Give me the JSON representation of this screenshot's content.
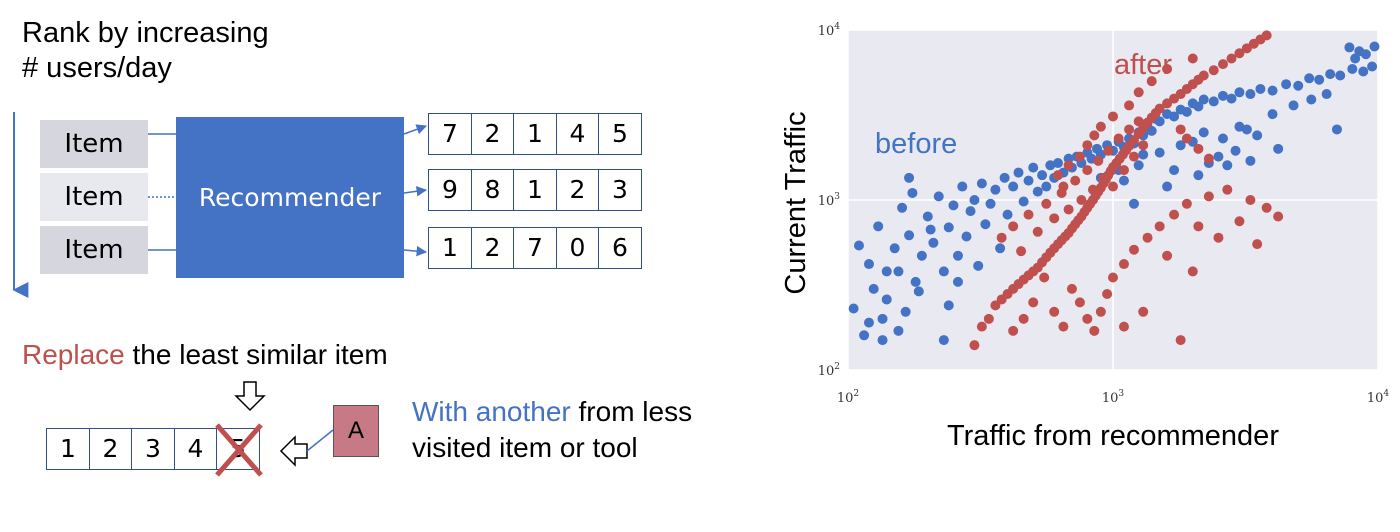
{
  "diagram": {
    "heading_line1": "Rank by increasing",
    "heading_line2": "# users/day",
    "items": [
      "Item",
      "Item",
      "Item"
    ],
    "recommender_label": "Recommender",
    "rows": [
      [
        "7",
        "2",
        "1",
        "4",
        "5"
      ],
      [
        "9",
        "8",
        "1",
        "2",
        "3"
      ],
      [
        "1",
        "2",
        "7",
        "0",
        "6"
      ]
    ],
    "replace_word": "Replace",
    "replace_rest": " the least similar item",
    "bottom_row": [
      "1",
      "2",
      "3",
      "4",
      "5"
    ],
    "a_label": "A",
    "with_highlight": "With another",
    "with_rest": " from less visited item or tool",
    "colors": {
      "accent_blue": "#4472c4",
      "accent_red": "#c0504d"
    }
  },
  "chart_data": {
    "type": "scatter",
    "xlabel": "Traffic from recommender",
    "ylabel": "Current Traffic",
    "x_scale": "log",
    "y_scale": "log",
    "xlim": [
      100,
      10000
    ],
    "ylim": [
      100,
      10000
    ],
    "x_ticks": [
      {
        "value": 100,
        "base": "10",
        "exp": "2"
      },
      {
        "value": 1000,
        "base": "10",
        "exp": "3"
      },
      {
        "value": 10000,
        "base": "10",
        "exp": "4"
      }
    ],
    "y_ticks": [
      {
        "value": 100,
        "base": "10",
        "exp": "2"
      },
      {
        "value": 1000,
        "base": "10",
        "exp": "3"
      },
      {
        "value": 10000,
        "base": "10",
        "exp": "4"
      }
    ],
    "grid": true,
    "annotations": [
      {
        "text": "before",
        "color": "#4472c4"
      },
      {
        "text": "after",
        "color": "#c0504d"
      }
    ],
    "series": [
      {
        "color": "#4472c4",
        "points": [
          [
            105,
            230
          ],
          [
            110,
            540
          ],
          [
            115,
            160
          ],
          [
            120,
            420
          ],
          [
            125,
            300
          ],
          [
            130,
            700
          ],
          [
            135,
            150
          ],
          [
            140,
            260
          ],
          [
            150,
            520
          ],
          [
            155,
            380
          ],
          [
            160,
            900
          ],
          [
            165,
            220
          ],
          [
            170,
            620
          ],
          [
            175,
            1100
          ],
          [
            180,
            330
          ],
          [
            190,
            470
          ],
          [
            200,
            800
          ],
          [
            210,
            560
          ],
          [
            220,
            1050
          ],
          [
            230,
            380
          ],
          [
            240,
            690
          ],
          [
            250,
            930
          ],
          [
            260,
            470
          ],
          [
            270,
            1200
          ],
          [
            280,
            610
          ],
          [
            290,
            860
          ],
          [
            300,
            1000
          ],
          [
            310,
            410
          ],
          [
            320,
            1250
          ],
          [
            330,
            720
          ],
          [
            345,
            950
          ],
          [
            360,
            1150
          ],
          [
            375,
            520
          ],
          [
            390,
            1350
          ],
          [
            400,
            820
          ],
          [
            420,
            1200
          ],
          [
            440,
            1450
          ],
          [
            460,
            980
          ],
          [
            480,
            1300
          ],
          [
            500,
            1550
          ],
          [
            520,
            1120
          ],
          [
            540,
            1400
          ],
          [
            560,
            1200
          ],
          [
            580,
            1600
          ],
          [
            600,
            1350
          ],
          [
            620,
            1650
          ],
          [
            650,
            1450
          ],
          [
            680,
            1750
          ],
          [
            700,
            1550
          ],
          [
            730,
            1800
          ],
          [
            760,
            1650
          ],
          [
            800,
            1900
          ],
          [
            830,
            1750
          ],
          [
            870,
            2000
          ],
          [
            900,
            1850
          ],
          [
            950,
            2100
          ],
          [
            1000,
            1950
          ],
          [
            1050,
            2200
          ],
          [
            1100,
            2050
          ],
          [
            1150,
            2300
          ],
          [
            1200,
            2150
          ],
          [
            1250,
            2500
          ],
          [
            1300,
            2400
          ],
          [
            1350,
            2700
          ],
          [
            1400,
            2550
          ],
          [
            1450,
            3000
          ],
          [
            1500,
            2900
          ],
          [
            1600,
            3200
          ],
          [
            1700,
            3100
          ],
          [
            1800,
            3400
          ],
          [
            1900,
            3300
          ],
          [
            2000,
            3700
          ],
          [
            2100,
            3550
          ],
          [
            2200,
            3900
          ],
          [
            2400,
            3800
          ],
          [
            2600,
            4100
          ],
          [
            2800,
            3950
          ],
          [
            3000,
            4300
          ],
          [
            3300,
            4200
          ],
          [
            3600,
            4500
          ],
          [
            4000,
            4400
          ],
          [
            4500,
            4800
          ],
          [
            5000,
            4700
          ],
          [
            5500,
            5200
          ],
          [
            6000,
            5100
          ],
          [
            6600,
            5500
          ],
          [
            7200,
            5400
          ],
          [
            8000,
            5900
          ],
          [
            8800,
            5700
          ],
          [
            9500,
            6100
          ],
          [
            9000,
            7200
          ],
          [
            8500,
            7500
          ],
          [
            7800,
            7900
          ],
          [
            8200,
            6800
          ],
          [
            9700,
            8000
          ],
          [
            1500,
            1900
          ],
          [
            1800,
            2100
          ],
          [
            2200,
            2500
          ],
          [
            2600,
            2300
          ],
          [
            3000,
            2700
          ],
          [
            3500,
            2400
          ],
          [
            1700,
            1500
          ],
          [
            2300,
            1650
          ],
          [
            2900,
            1950
          ],
          [
            1250,
            1600
          ],
          [
            1100,
            1300
          ],
          [
            1050,
            1500
          ],
          [
            900,
            1350
          ],
          [
            1300,
            1850
          ],
          [
            2000,
            2200
          ],
          [
            2500,
            1800
          ],
          [
            3200,
            2600
          ],
          [
            4000,
            3200
          ],
          [
            4800,
            3600
          ],
          [
            5600,
            3900
          ],
          [
            6400,
            4200
          ],
          [
            7000,
            2600
          ],
          [
            4200,
            2000
          ],
          [
            1200,
            950
          ],
          [
            1600,
            1200
          ],
          [
            2100,
            1400
          ],
          [
            2700,
            1600
          ],
          [
            3300,
            1700
          ],
          [
            170,
            1350
          ],
          [
            140,
            380
          ],
          [
            185,
            290
          ],
          [
            205,
            670
          ],
          [
            240,
            240
          ],
          [
            120,
            190
          ],
          [
            135,
            200
          ],
          [
            155,
            170
          ],
          [
            230,
            150
          ],
          [
            260,
            330
          ]
        ]
      },
      {
        "color": "#c0504d",
        "points": [
          [
            300,
            140
          ],
          [
            320,
            180
          ],
          [
            340,
            200
          ],
          [
            360,
            240
          ],
          [
            380,
            260
          ],
          [
            400,
            280
          ],
          [
            420,
            300
          ],
          [
            440,
            320
          ],
          [
            460,
            340
          ],
          [
            480,
            360
          ],
          [
            500,
            380
          ],
          [
            520,
            400
          ],
          [
            540,
            430
          ],
          [
            560,
            460
          ],
          [
            580,
            490
          ],
          [
            600,
            520
          ],
          [
            620,
            550
          ],
          [
            640,
            580
          ],
          [
            660,
            610
          ],
          [
            680,
            640
          ],
          [
            700,
            680
          ],
          [
            720,
            720
          ],
          [
            740,
            760
          ],
          [
            760,
            800
          ],
          [
            780,
            850
          ],
          [
            800,
            900
          ],
          [
            820,
            950
          ],
          [
            840,
            1000
          ],
          [
            860,
            1060
          ],
          [
            880,
            1120
          ],
          [
            900,
            1180
          ],
          [
            920,
            1250
          ],
          [
            940,
            1320
          ],
          [
            960,
            1400
          ],
          [
            980,
            1480
          ],
          [
            1000,
            1560
          ],
          [
            1030,
            1650
          ],
          [
            1060,
            1750
          ],
          [
            1090,
            1850
          ],
          [
            1120,
            1960
          ],
          [
            1150,
            2080
          ],
          [
            1200,
            2250
          ],
          [
            1250,
            2450
          ],
          [
            1300,
            2650
          ],
          [
            1350,
            2850
          ],
          [
            1400,
            3050
          ],
          [
            1450,
            3250
          ],
          [
            1500,
            3450
          ],
          [
            1600,
            3700
          ],
          [
            1700,
            3950
          ],
          [
            1800,
            4200
          ],
          [
            1900,
            4500
          ],
          [
            2000,
            4800
          ],
          [
            2100,
            5100
          ],
          [
            2200,
            5400
          ],
          [
            2400,
            5800
          ],
          [
            2600,
            6300
          ],
          [
            2800,
            6800
          ],
          [
            3000,
            7300
          ],
          [
            3200,
            7800
          ],
          [
            3400,
            8300
          ],
          [
            3600,
            8800
          ],
          [
            3800,
            9300
          ],
          [
            380,
            600
          ],
          [
            420,
            700
          ],
          [
            450,
            500
          ],
          [
            480,
            820
          ],
          [
            520,
            650
          ],
          [
            560,
            950
          ],
          [
            600,
            780
          ],
          [
            640,
            1100
          ],
          [
            680,
            880
          ],
          [
            720,
            1300
          ],
          [
            760,
            1000
          ],
          [
            800,
            1500
          ],
          [
            840,
            1150
          ],
          [
            880,
            1700
          ],
          [
            920,
            1350
          ],
          [
            960,
            1950
          ],
          [
            1000,
            1200
          ],
          [
            1050,
            2300
          ],
          [
            1100,
            1500
          ],
          [
            1150,
            2600
          ],
          [
            1200,
            1800
          ],
          [
            1250,
            2900
          ],
          [
            1300,
            2100
          ],
          [
            700,
            300
          ],
          [
            750,
            250
          ],
          [
            800,
            200
          ],
          [
            850,
            170
          ],
          [
            900,
            220
          ],
          [
            950,
            280
          ],
          [
            1000,
            350
          ],
          [
            1100,
            420
          ],
          [
            1200,
            510
          ],
          [
            1350,
            600
          ],
          [
            1500,
            700
          ],
          [
            1700,
            820
          ],
          [
            1900,
            950
          ],
          [
            2100,
            700
          ],
          [
            2500,
            600
          ],
          [
            3000,
            750
          ],
          [
            3500,
            550
          ],
          [
            1600,
            470
          ],
          [
            2000,
            380
          ],
          [
            1100,
            180
          ],
          [
            1300,
            220
          ],
          [
            1800,
            150
          ],
          [
            650,
            1200
          ],
          [
            620,
            1400
          ],
          [
            680,
            1600
          ],
          [
            750,
            1800
          ],
          [
            800,
            2100
          ],
          [
            850,
            2400
          ],
          [
            900,
            2700
          ],
          [
            1000,
            3100
          ],
          [
            1150,
            3600
          ],
          [
            1250,
            4300
          ],
          [
            1400,
            5000
          ],
          [
            1600,
            5900
          ],
          [
            2000,
            6800
          ],
          [
            550,
            350
          ],
          [
            500,
            250
          ],
          [
            460,
            200
          ],
          [
            600,
            220
          ],
          [
            650,
            180
          ],
          [
            420,
            170
          ],
          [
            2300,
            1050
          ],
          [
            2700,
            1150
          ],
          [
            3300,
            1000
          ],
          [
            3800,
            900
          ],
          [
            4200,
            800
          ],
          [
            1800,
            2600
          ],
          [
            1900,
            2300
          ],
          [
            2100,
            2000
          ],
          [
            2300,
            1750
          ]
        ]
      }
    ]
  }
}
